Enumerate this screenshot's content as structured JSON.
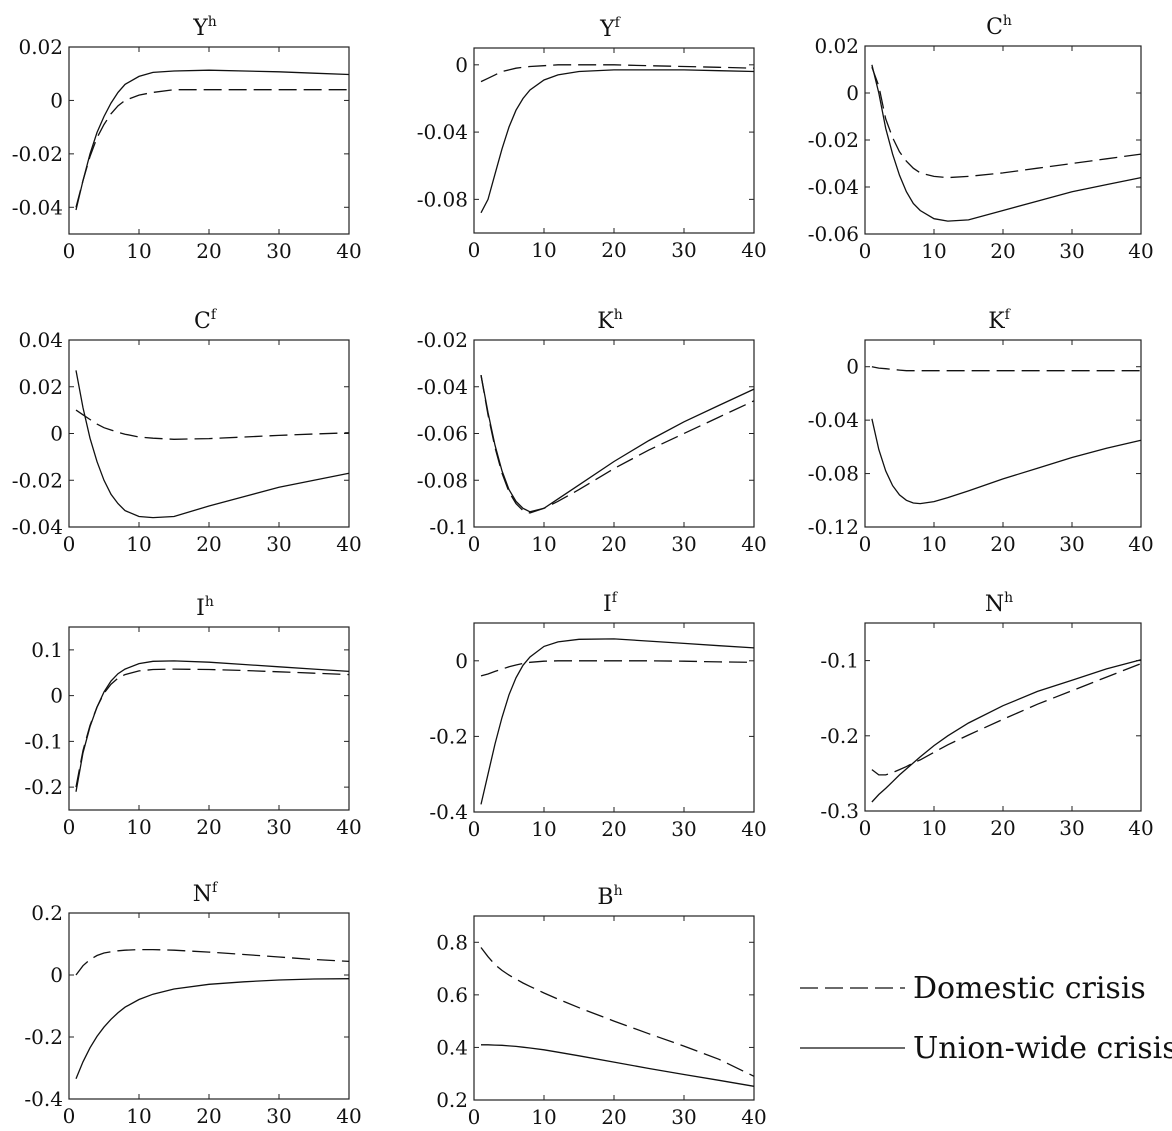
{
  "legend": {
    "entries": [
      {
        "label": "Domestic crisis",
        "style": "dashed"
      },
      {
        "label": "Union-wide crisis",
        "style": "solid"
      }
    ]
  },
  "chart_data": [
    {
      "type": "line",
      "title": "Y",
      "title_superscript": "h",
      "xlim": [
        0,
        40
      ],
      "ylim": [
        -0.05,
        0.02
      ],
      "xticks": [
        0,
        10,
        20,
        30,
        40
      ],
      "xtick_labels": [
        "0",
        "10",
        "20",
        "30",
        "40"
      ],
      "yticks": [
        -0.04,
        -0.02,
        0,
        0.02
      ],
      "ytick_labels": [
        "-0.04",
        "-0.02",
        "0",
        "0.02"
      ],
      "x": [
        1,
        2,
        3,
        4,
        5,
        6,
        7,
        8,
        10,
        12,
        15,
        20,
        25,
        30,
        35,
        40
      ],
      "series": [
        {
          "name": "Domestic crisis",
          "style": "dashed",
          "values": [
            -0.04,
            -0.03,
            -0.021,
            -0.014,
            -0.009,
            -0.005,
            -0.002,
            0.0,
            0.002,
            0.003,
            0.004,
            0.004,
            0.004,
            0.004,
            0.004,
            0.004
          ]
        },
        {
          "name": "Union-wide crisis",
          "style": "solid",
          "values": [
            -0.041,
            -0.03,
            -0.02,
            -0.012,
            -0.006,
            -0.001,
            0.003,
            0.006,
            0.009,
            0.0105,
            0.011,
            0.0113,
            0.011,
            0.0107,
            0.0102,
            0.0097
          ]
        }
      ]
    },
    {
      "type": "line",
      "title": "Y",
      "title_superscript": "f",
      "xlim": [
        0,
        40
      ],
      "ylim": [
        -0.1,
        0.01
      ],
      "xticks": [
        0,
        10,
        20,
        30,
        40
      ],
      "xtick_labels": [
        "0",
        "10",
        "20",
        "30",
        "40"
      ],
      "yticks": [
        -0.08,
        -0.04,
        0
      ],
      "ytick_labels": [
        "-0.08",
        "-0.04",
        "0"
      ],
      "x": [
        1,
        2,
        3,
        4,
        5,
        6,
        7,
        8,
        10,
        12,
        15,
        20,
        25,
        30,
        35,
        40
      ],
      "series": [
        {
          "name": "Domestic crisis",
          "style": "dashed",
          "values": [
            -0.01,
            -0.008,
            -0.006,
            -0.004,
            -0.003,
            -0.002,
            -0.0015,
            -0.001,
            -0.0005,
            0.0,
            0.0,
            0.0,
            -0.0005,
            -0.001,
            -0.0015,
            -0.002
          ]
        },
        {
          "name": "Union-wide crisis",
          "style": "solid",
          "values": [
            -0.088,
            -0.08,
            -0.065,
            -0.05,
            -0.037,
            -0.027,
            -0.02,
            -0.015,
            -0.009,
            -0.006,
            -0.004,
            -0.003,
            -0.003,
            -0.003,
            -0.0035,
            -0.004
          ]
        }
      ]
    },
    {
      "type": "line",
      "title": "C",
      "title_superscript": "h",
      "xlim": [
        0,
        40
      ],
      "ylim": [
        -0.06,
        0.02
      ],
      "xticks": [
        0,
        10,
        20,
        30,
        40
      ],
      "xtick_labels": [
        "0",
        "10",
        "20",
        "30",
        "40"
      ],
      "yticks": [
        -0.06,
        -0.04,
        -0.02,
        0,
        0.02
      ],
      "ytick_labels": [
        "-0.06",
        "-0.04",
        "-0.02",
        "0",
        "0.02"
      ],
      "x": [
        1,
        2,
        3,
        4,
        5,
        6,
        7,
        8,
        10,
        12,
        15,
        20,
        25,
        30,
        35,
        40
      ],
      "series": [
        {
          "name": "Domestic crisis",
          "style": "dashed",
          "values": [
            0.011,
            0.003,
            -0.011,
            -0.019,
            -0.025,
            -0.029,
            -0.032,
            -0.034,
            -0.0355,
            -0.036,
            -0.0355,
            -0.034,
            -0.032,
            -0.03,
            -0.028,
            -0.026
          ]
        },
        {
          "name": "Union-wide crisis",
          "style": "solid",
          "values": [
            0.012,
            0.0,
            -0.015,
            -0.026,
            -0.035,
            -0.042,
            -0.047,
            -0.05,
            -0.0535,
            -0.0545,
            -0.054,
            -0.05,
            -0.046,
            -0.042,
            -0.039,
            -0.036
          ]
        }
      ]
    },
    {
      "type": "line",
      "title": "C",
      "title_superscript": "f",
      "xlim": [
        0,
        40
      ],
      "ylim": [
        -0.04,
        0.04
      ],
      "xticks": [
        0,
        10,
        20,
        30,
        40
      ],
      "xtick_labels": [
        "0",
        "10",
        "20",
        "30",
        "40"
      ],
      "yticks": [
        -0.04,
        -0.02,
        0,
        0.02,
        0.04
      ],
      "ytick_labels": [
        "-0.04",
        "-0.02",
        "0",
        "0.02",
        "0.04"
      ],
      "x": [
        1,
        2,
        3,
        4,
        5,
        6,
        7,
        8,
        10,
        12,
        15,
        20,
        25,
        30,
        35,
        40
      ],
      "series": [
        {
          "name": "Domestic crisis",
          "style": "dashed",
          "values": [
            0.01,
            0.008,
            0.006,
            0.004,
            0.0025,
            0.0015,
            0.0005,
            -0.0003,
            -0.0015,
            -0.002,
            -0.0025,
            -0.0022,
            -0.0015,
            -0.0008,
            -0.0002,
            0.0003
          ]
        },
        {
          "name": "Union-wide crisis",
          "style": "solid",
          "values": [
            0.027,
            0.011,
            -0.002,
            -0.012,
            -0.02,
            -0.026,
            -0.03,
            -0.033,
            -0.0355,
            -0.036,
            -0.0355,
            -0.031,
            -0.027,
            -0.023,
            -0.02,
            -0.017
          ]
        }
      ]
    },
    {
      "type": "line",
      "title": "K",
      "title_superscript": "h",
      "xlim": [
        0,
        40
      ],
      "ylim": [
        -0.1,
        -0.02
      ],
      "xticks": [
        0,
        10,
        20,
        30,
        40
      ],
      "xtick_labels": [
        "0",
        "10",
        "20",
        "30",
        "40"
      ],
      "yticks": [
        -0.1,
        -0.08,
        -0.06,
        -0.04,
        -0.02
      ],
      "ytick_labels": [
        "-0.1",
        "-0.08",
        "-0.06",
        "-0.04",
        "-0.02"
      ],
      "x": [
        1,
        2,
        3,
        4,
        5,
        6,
        7,
        8,
        10,
        12,
        15,
        20,
        25,
        30,
        35,
        40
      ],
      "series": [
        {
          "name": "Domestic crisis",
          "style": "dashed",
          "values": [
            -0.035,
            -0.052,
            -0.066,
            -0.077,
            -0.085,
            -0.09,
            -0.093,
            -0.094,
            -0.092,
            -0.089,
            -0.084,
            -0.075,
            -0.067,
            -0.06,
            -0.053,
            -0.046
          ]
        },
        {
          "name": "Union-wide crisis",
          "style": "solid",
          "values": [
            -0.035,
            -0.051,
            -0.065,
            -0.076,
            -0.084,
            -0.089,
            -0.092,
            -0.0935,
            -0.092,
            -0.088,
            -0.082,
            -0.072,
            -0.063,
            -0.055,
            -0.048,
            -0.041
          ]
        }
      ]
    },
    {
      "type": "line",
      "title": "K",
      "title_superscript": "f",
      "xlim": [
        0,
        40
      ],
      "ylim": [
        -0.12,
        0.02
      ],
      "xticks": [
        0,
        10,
        20,
        30,
        40
      ],
      "xtick_labels": [
        "0",
        "10",
        "20",
        "30",
        "40"
      ],
      "yticks": [
        -0.12,
        -0.08,
        -0.04,
        0
      ],
      "ytick_labels": [
        "-0.12",
        "-0.08",
        "-0.04",
        "0"
      ],
      "x": [
        1,
        2,
        3,
        4,
        5,
        6,
        7,
        8,
        10,
        12,
        15,
        20,
        25,
        30,
        35,
        40
      ],
      "series": [
        {
          "name": "Domestic crisis",
          "style": "dashed",
          "values": [
            0.0,
            -0.001,
            -0.0015,
            -0.002,
            -0.0025,
            -0.003,
            -0.003,
            -0.003,
            -0.003,
            -0.003,
            -0.003,
            -0.003,
            -0.003,
            -0.003,
            -0.003,
            -0.003
          ]
        },
        {
          "name": "Union-wide crisis",
          "style": "solid",
          "values": [
            -0.039,
            -0.062,
            -0.078,
            -0.089,
            -0.096,
            -0.1,
            -0.102,
            -0.1025,
            -0.101,
            -0.098,
            -0.093,
            -0.084,
            -0.076,
            -0.068,
            -0.061,
            -0.055
          ]
        }
      ]
    },
    {
      "type": "line",
      "title": "I",
      "title_superscript": "h",
      "xlim": [
        0,
        40
      ],
      "ylim": [
        -0.25,
        0.15
      ],
      "xticks": [
        0,
        10,
        20,
        30,
        40
      ],
      "xtick_labels": [
        "0",
        "10",
        "20",
        "30",
        "40"
      ],
      "yticks": [
        -0.2,
        -0.1,
        0,
        0.1
      ],
      "ytick_labels": [
        "-0.2",
        "-0.1",
        "0",
        "0.1"
      ],
      "x": [
        1,
        2,
        3,
        4,
        5,
        6,
        7,
        8,
        10,
        12,
        15,
        20,
        25,
        30,
        35,
        40
      ],
      "series": [
        {
          "name": "Domestic crisis",
          "style": "dashed",
          "values": [
            -0.2,
            -0.12,
            -0.065,
            -0.025,
            0.005,
            0.025,
            0.038,
            0.046,
            0.054,
            0.057,
            0.058,
            0.057,
            0.055,
            0.052,
            0.049,
            0.046
          ]
        },
        {
          "name": "Union-wide crisis",
          "style": "solid",
          "values": [
            -0.21,
            -0.125,
            -0.068,
            -0.025,
            0.008,
            0.032,
            0.048,
            0.058,
            0.07,
            0.075,
            0.076,
            0.073,
            0.068,
            0.063,
            0.058,
            0.053
          ]
        }
      ]
    },
    {
      "type": "line",
      "title": "I",
      "title_superscript": "f",
      "xlim": [
        0,
        40
      ],
      "ylim": [
        -0.4,
        0.1
      ],
      "xticks": [
        0,
        10,
        20,
        30,
        40
      ],
      "xtick_labels": [
        "0",
        "10",
        "20",
        "30",
        "40"
      ],
      "yticks": [
        -0.4,
        -0.2,
        0
      ],
      "ytick_labels": [
        "-0.4",
        "-0.2",
        "0"
      ],
      "x": [
        1,
        2,
        3,
        4,
        5,
        6,
        7,
        8,
        10,
        12,
        15,
        20,
        25,
        30,
        35,
        40
      ],
      "series": [
        {
          "name": "Domestic crisis",
          "style": "dashed",
          "values": [
            -0.04,
            -0.035,
            -0.028,
            -0.022,
            -0.016,
            -0.011,
            -0.007,
            -0.004,
            -0.001,
            0.0,
            0.0,
            0.0,
            0.0,
            -0.001,
            -0.003,
            -0.004
          ]
        },
        {
          "name": "Union-wide crisis",
          "style": "solid",
          "values": [
            -0.38,
            -0.3,
            -0.22,
            -0.15,
            -0.09,
            -0.045,
            -0.012,
            0.01,
            0.038,
            0.05,
            0.057,
            0.058,
            0.052,
            0.046,
            0.04,
            0.034
          ]
        }
      ]
    },
    {
      "type": "line",
      "title": "N",
      "title_superscript": "h",
      "xlim": [
        0,
        40
      ],
      "ylim": [
        -0.3,
        -0.05
      ],
      "xticks": [
        0,
        10,
        20,
        30,
        40
      ],
      "xtick_labels": [
        "0",
        "10",
        "20",
        "30",
        "40"
      ],
      "yticks": [
        -0.3,
        -0.2,
        -0.1
      ],
      "ytick_labels": [
        "-0.3",
        "-0.2",
        "-0.1"
      ],
      "x": [
        1,
        2,
        3,
        4,
        5,
        6,
        7,
        8,
        10,
        12,
        15,
        20,
        25,
        30,
        35,
        40
      ],
      "series": [
        {
          "name": "Domestic crisis",
          "style": "dashed",
          "values": [
            -0.245,
            -0.252,
            -0.252,
            -0.249,
            -0.245,
            -0.241,
            -0.236,
            -0.232,
            -0.222,
            -0.212,
            -0.199,
            -0.178,
            -0.158,
            -0.14,
            -0.122,
            -0.104
          ]
        },
        {
          "name": "Union-wide crisis",
          "style": "solid",
          "values": [
            -0.288,
            -0.278,
            -0.27,
            -0.261,
            -0.252,
            -0.244,
            -0.236,
            -0.228,
            -0.213,
            -0.2,
            -0.183,
            -0.16,
            -0.141,
            -0.126,
            -0.111,
            -0.099
          ]
        }
      ]
    },
    {
      "type": "line",
      "title": "N",
      "title_superscript": "f",
      "xlim": [
        0,
        40
      ],
      "ylim": [
        -0.4,
        0.2
      ],
      "xticks": [
        0,
        10,
        20,
        30,
        40
      ],
      "xtick_labels": [
        "0",
        "10",
        "20",
        "30",
        "40"
      ],
      "yticks": [
        -0.4,
        -0.2,
        0,
        0.2
      ],
      "ytick_labels": [
        "-0.4",
        "-0.2",
        "0",
        "0.2"
      ],
      "x": [
        1,
        2,
        3,
        4,
        5,
        6,
        7,
        8,
        10,
        12,
        15,
        20,
        25,
        30,
        35,
        40
      ],
      "series": [
        {
          "name": "Domestic crisis",
          "style": "dashed",
          "values": [
            0.0,
            0.03,
            0.05,
            0.063,
            0.071,
            0.075,
            0.078,
            0.08,
            0.082,
            0.082,
            0.08,
            0.074,
            0.066,
            0.058,
            0.05,
            0.044
          ]
        },
        {
          "name": "Union-wide crisis",
          "style": "solid",
          "values": [
            -0.335,
            -0.28,
            -0.235,
            -0.198,
            -0.168,
            -0.143,
            -0.122,
            -0.104,
            -0.079,
            -0.062,
            -0.045,
            -0.03,
            -0.022,
            -0.016,
            -0.013,
            -0.012
          ]
        }
      ]
    },
    {
      "type": "line",
      "title": "B",
      "title_superscript": "h",
      "xlim": [
        0,
        40
      ],
      "ylim": [
        0.2,
        0.9
      ],
      "xticks": [
        0,
        10,
        20,
        30,
        40
      ],
      "xtick_labels": [
        "0",
        "10",
        "20",
        "30",
        "40"
      ],
      "yticks": [
        0.2,
        0.4,
        0.6,
        0.8
      ],
      "ytick_labels": [
        "0.2",
        "0.4",
        "0.6",
        "0.8"
      ],
      "x": [
        1,
        2,
        3,
        4,
        5,
        6,
        7,
        8,
        10,
        12,
        15,
        20,
        25,
        30,
        35,
        40
      ],
      "series": [
        {
          "name": "Domestic crisis",
          "style": "dashed",
          "values": [
            0.78,
            0.745,
            0.715,
            0.693,
            0.675,
            0.66,
            0.645,
            0.632,
            0.607,
            0.584,
            0.551,
            0.5,
            0.452,
            0.405,
            0.355,
            0.29
          ]
        },
        {
          "name": "Union-wide crisis",
          "style": "solid",
          "values": [
            0.41,
            0.41,
            0.409,
            0.408,
            0.406,
            0.404,
            0.401,
            0.398,
            0.391,
            0.382,
            0.368,
            0.344,
            0.32,
            0.297,
            0.275,
            0.252
          ]
        }
      ]
    }
  ]
}
